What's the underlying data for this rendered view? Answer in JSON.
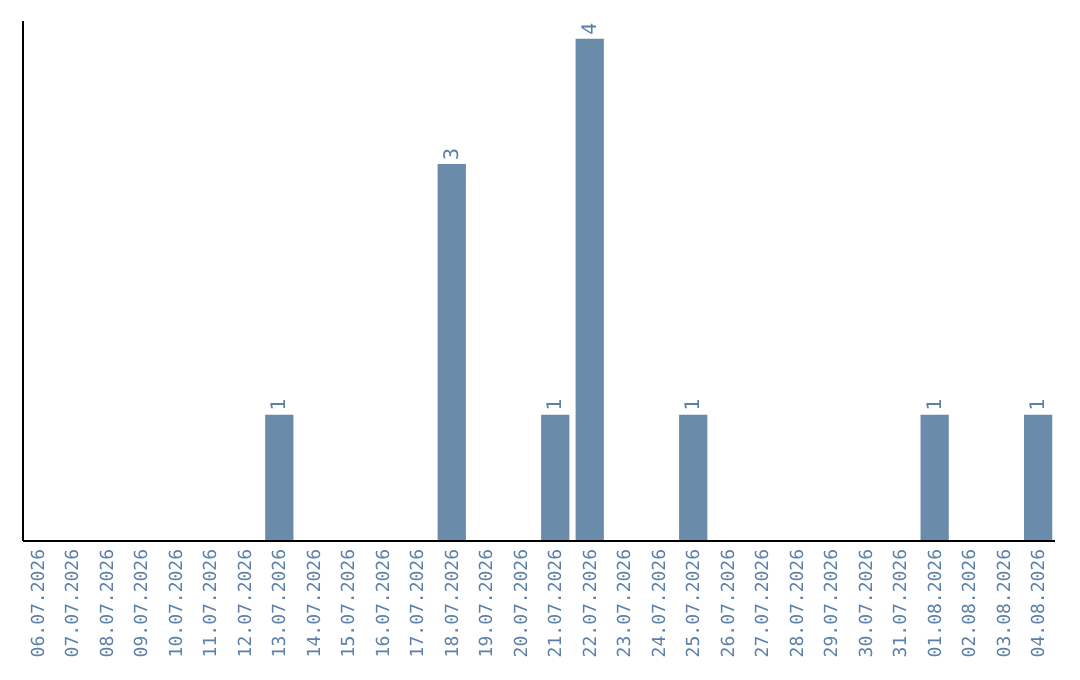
{
  "chart_data": {
    "type": "bar",
    "categories": [
      "06.07.2026",
      "07.07.2026",
      "08.07.2026",
      "09.07.2026",
      "10.07.2026",
      "11.07.2026",
      "12.07.2026",
      "13.07.2026",
      "14.07.2026",
      "15.07.2026",
      "16.07.2026",
      "17.07.2026",
      "18.07.2026",
      "19.07.2026",
      "20.07.2026",
      "21.07.2026",
      "22.07.2026",
      "23.07.2026",
      "24.07.2026",
      "25.07.2026",
      "26.07.2026",
      "27.07.2026",
      "28.07.2026",
      "29.07.2026",
      "30.07.2026",
      "31.07.2026",
      "01.08.2026",
      "02.08.2026",
      "03.08.2026",
      "04.08.2026"
    ],
    "values": [
      0,
      0,
      0,
      0,
      0,
      0,
      0,
      1,
      0,
      0,
      0,
      0,
      3,
      0,
      0,
      1,
      4,
      0,
      0,
      1,
      0,
      0,
      0,
      0,
      0,
      0,
      1,
      0,
      0,
      1
    ],
    "value_labels": [
      null,
      null,
      null,
      null,
      null,
      null,
      null,
      "1",
      null,
      null,
      null,
      null,
      "3",
      null,
      null,
      "1",
      "4",
      null,
      null,
      "1",
      null,
      null,
      null,
      null,
      null,
      null,
      "1",
      null,
      null,
      "1"
    ],
    "color": "#6a8caa",
    "ylim": [
      0,
      4.15
    ],
    "tick_labels": "x",
    "grid": false
  }
}
